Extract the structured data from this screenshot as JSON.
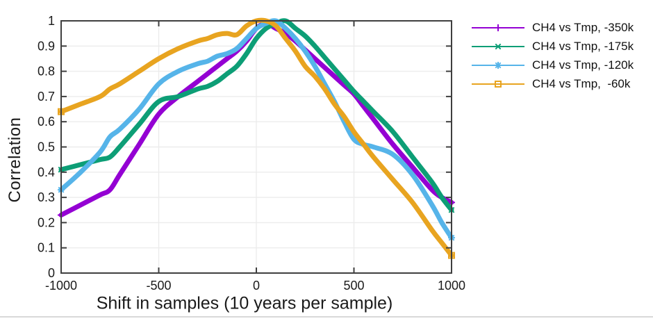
{
  "figure": {
    "background": "#ffffff",
    "axis_color": "#3f3f3f",
    "grid_color": "#ececec",
    "tick_label_color": "#1a1a1a",
    "line_width": 7
  },
  "chart_data": {
    "type": "line",
    "title": "",
    "xlabel": "Shift in samples (10 years per sample)",
    "ylabel": "Correlation",
    "xlim": [
      -1000,
      1000
    ],
    "ylim": [
      0,
      1
    ],
    "grid": true,
    "legend_position": "outside-right-top",
    "x_ticks": [
      {
        "v": -1000,
        "label": "-1000"
      },
      {
        "v": -500,
        "label": "-500"
      },
      {
        "v": 0,
        "label": "0"
      },
      {
        "v": 500,
        "label": "500"
      },
      {
        "v": 1000,
        "label": "1000"
      }
    ],
    "y_ticks": [
      {
        "v": 0,
        "label": "0"
      },
      {
        "v": 0.1,
        "label": "0.1"
      },
      {
        "v": 0.2,
        "label": "0.2"
      },
      {
        "v": 0.3,
        "label": "0.3"
      },
      {
        "v": 0.4,
        "label": "0.4"
      },
      {
        "v": 0.5,
        "label": "0.5"
      },
      {
        "v": 0.6,
        "label": "0.6"
      },
      {
        "v": 0.7,
        "label": "0.7"
      },
      {
        "v": 0.8,
        "label": "0.8"
      },
      {
        "v": 0.9,
        "label": "0.9"
      },
      {
        "v": 1,
        "label": "1"
      }
    ],
    "x": [
      -1000,
      -900,
      -800,
      -750,
      -700,
      -600,
      -500,
      -400,
      -300,
      -250,
      -200,
      -150,
      -100,
      -50,
      0,
      50,
      100,
      150,
      200,
      250,
      300,
      350,
      400,
      450,
      500,
      550,
      600,
      700,
      800,
      900,
      950,
      1000
    ],
    "series": [
      {
        "name": "CH4 vs Tmp, -350k",
        "color": "#9400d3",
        "marker": "plus",
        "values": [
          0.23,
          0.27,
          0.31,
          0.33,
          0.39,
          0.51,
          0.63,
          0.7,
          0.76,
          0.79,
          0.82,
          0.85,
          0.88,
          0.92,
          0.97,
          0.99,
          0.97,
          0.95,
          0.92,
          0.885,
          0.85,
          0.815,
          0.78,
          0.745,
          0.71,
          0.66,
          0.61,
          0.51,
          0.42,
          0.33,
          0.3,
          0.28
        ]
      },
      {
        "name": "CH4 vs Tmp, -175k",
        "color": "#0d9e76",
        "marker": "cross",
        "values": [
          0.41,
          0.43,
          0.45,
          0.46,
          0.5,
          0.59,
          0.68,
          0.7,
          0.73,
          0.74,
          0.76,
          0.79,
          0.82,
          0.87,
          0.93,
          0.97,
          0.99,
          1.0,
          0.97,
          0.94,
          0.9,
          0.855,
          0.81,
          0.765,
          0.72,
          0.68,
          0.64,
          0.56,
          0.46,
          0.36,
          0.3,
          0.25
        ]
      },
      {
        "name": "CH4 vs Tmp, -120k",
        "color": "#56b4e9",
        "marker": "asterisk",
        "values": [
          0.33,
          0.4,
          0.48,
          0.54,
          0.57,
          0.65,
          0.75,
          0.8,
          0.83,
          0.84,
          0.86,
          0.87,
          0.89,
          0.93,
          0.97,
          0.99,
          1.0,
          0.97,
          0.93,
          0.88,
          0.82,
          0.75,
          0.68,
          0.6,
          0.53,
          0.51,
          0.5,
          0.47,
          0.39,
          0.27,
          0.2,
          0.14
        ]
      },
      {
        "name": "CH4 vs Tmp,  -60k",
        "color": "#e8a420",
        "marker": "square",
        "values": [
          0.64,
          0.67,
          0.7,
          0.73,
          0.75,
          0.8,
          0.85,
          0.89,
          0.92,
          0.93,
          0.945,
          0.95,
          0.945,
          0.98,
          1.0,
          1.0,
          0.98,
          0.93,
          0.88,
          0.82,
          0.78,
          0.73,
          0.67,
          0.62,
          0.56,
          0.51,
          0.46,
          0.37,
          0.28,
          0.17,
          0.12,
          0.07
        ]
      }
    ]
  }
}
